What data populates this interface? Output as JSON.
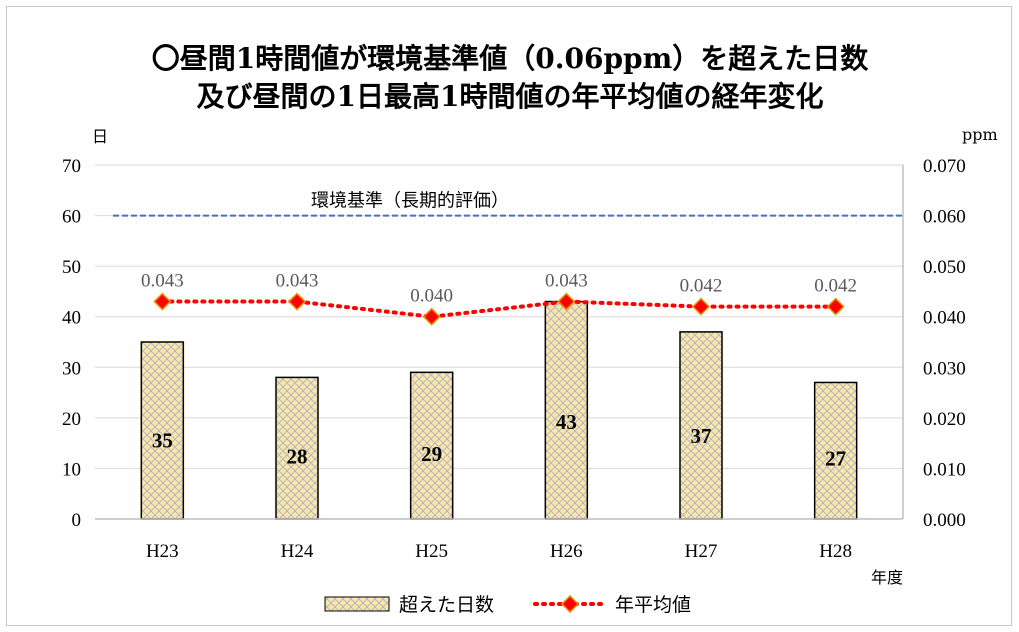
{
  "chart_data": {
    "type": "bar",
    "title_lines": [
      "〇昼間1時間値が環境基準値（0.06ppm）を超えた日数",
      "及び昼間の1日最高1時間値の年平均値の経年変化"
    ],
    "categories": [
      "H23",
      "H24",
      "H25",
      "H26",
      "H27",
      "H28"
    ],
    "xlabel": "年度",
    "ylabel_left": "日",
    "ylabel_right": "ppm",
    "ylim_left": [
      0,
      70
    ],
    "ylim_right": [
      0.0,
      0.07
    ],
    "yticks_left": [
      "0",
      "10",
      "20",
      "30",
      "40",
      "50",
      "60",
      "70"
    ],
    "yticks_right": [
      "0.000",
      "0.010",
      "0.020",
      "0.030",
      "0.040",
      "0.050",
      "0.060",
      "0.070"
    ],
    "grid": true,
    "legend_position": "bottom",
    "series": [
      {
        "name": "超えた日数",
        "type": "bar",
        "axis": "left",
        "values": [
          35,
          28,
          29,
          43,
          37,
          27
        ],
        "labels": [
          "35",
          "28",
          "29",
          "43",
          "37",
          "27"
        ],
        "fill": "#fbe7a5",
        "pattern_color": "#b8b8c8",
        "border": "#000000"
      },
      {
        "name": "年平均値",
        "type": "line",
        "axis": "right",
        "values": [
          0.043,
          0.043,
          0.04,
          0.043,
          0.042,
          0.042
        ],
        "labels": [
          "0.043",
          "0.043",
          "0.040",
          "0.043",
          "0.042",
          "0.042"
        ],
        "line_color": "#ff0000",
        "marker_color": "#ff0000",
        "marker_edge": "#e69500"
      }
    ],
    "reference_line": {
      "label": "環境基準（長期的評価）",
      "value_left_axis": 60,
      "color": "#4472c4"
    },
    "colors": {
      "gridline": "#d9d9d9",
      "axis": "#bfbfbf"
    }
  }
}
